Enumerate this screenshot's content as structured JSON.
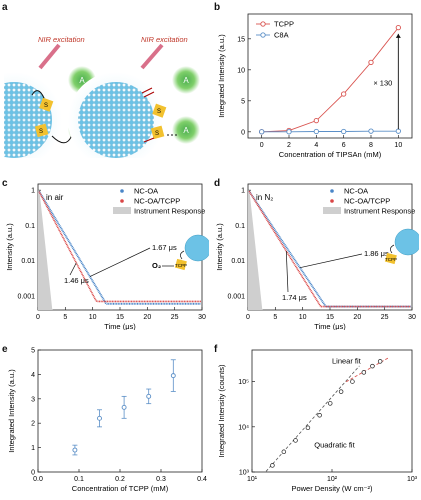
{
  "panels": {
    "a": {
      "label": "a",
      "left_caption": "NIR excitation",
      "right_caption": "NIR excitation",
      "acceptor_letter": "A",
      "sensitizer_letter": "S"
    },
    "b": {
      "label": "b"
    },
    "c": {
      "label": "c",
      "condition": "in air",
      "ann1": "1.67 μs",
      "ann2": "1.46 μs",
      "o2_label": "O₂",
      "tcpp_label": "TCPP"
    },
    "d": {
      "label": "d",
      "condition": "in N₂",
      "ann1": "1.86 μs",
      "ann2": "1.74 μs",
      "tcpp_label": "TCPP"
    },
    "e": {
      "label": "e"
    },
    "f": {
      "label": "f",
      "linear_label": "Linear fit",
      "quadratic_label": "Quadratic fit"
    }
  },
  "colors": {
    "tcpp": "#d9534f",
    "c8a": "#5b8fc7",
    "nc_oa": "#4a86c8",
    "nc_oa_tcpp": "#d94545",
    "instrument": "#cfcfcf",
    "nanocrystal": "#6cc2e6",
    "acceptor": "#4caf50",
    "sensitizer": "#f2c12e",
    "laser": "#d9708a"
  },
  "chart_data": [
    {
      "id": "b",
      "type": "line",
      "xlabel": "Concentration of TIPSAn (mM)",
      "ylabel": "Integrated Intensity (a.u.)",
      "xlim": [
        -1,
        11
      ],
      "ylim": [
        -1,
        19
      ],
      "xticks": [
        0,
        2,
        4,
        6,
        8,
        10
      ],
      "yticks": [
        0,
        5,
        10,
        15
      ],
      "annotation": "× 130",
      "series": [
        {
          "name": "TCPP",
          "x": [
            0,
            2,
            4,
            6,
            8,
            10
          ],
          "values": [
            0,
            0.2,
            1.8,
            6.1,
            11.2,
            16.8
          ]
        },
        {
          "name": "C8A",
          "x": [
            0,
            2,
            4,
            6,
            8,
            10
          ],
          "values": [
            0,
            0,
            0.05,
            0.05,
            0.1,
            0.1
          ]
        }
      ]
    },
    {
      "id": "c",
      "type": "scatter",
      "xlabel": "Time (μs)",
      "ylabel": "Intensity (a.u.)",
      "xlim": [
        0,
        30
      ],
      "ylim": [
        0.0004,
        1.5
      ],
      "yscale": "log",
      "xticks": [
        0,
        5,
        10,
        15,
        20,
        25,
        30
      ],
      "yticks": [
        1,
        0.1,
        0.01,
        0.001
      ],
      "ytick_labels": [
        "1",
        "0.1",
        "0.01",
        "0.001"
      ],
      "legend": [
        "NC-OA",
        "NC-OA/TCPP",
        "Instrument Response"
      ],
      "series": [
        {
          "name": "NC-OA",
          "tau": 1.67
        },
        {
          "name": "NC-OA/TCPP",
          "tau": 1.46
        }
      ]
    },
    {
      "id": "d",
      "type": "scatter",
      "xlabel": "Time (μs)",
      "ylabel": "Intensity (a.u.)",
      "xlim": [
        0,
        30
      ],
      "ylim": [
        0.0004,
        1.5
      ],
      "yscale": "log",
      "xticks": [
        0,
        5,
        10,
        15,
        20,
        25,
        30
      ],
      "yticks": [
        1,
        0.1,
        0.01,
        0.001
      ],
      "ytick_labels": [
        "1",
        "0.1",
        "0.01",
        "0.001"
      ],
      "legend": [
        "NC-OA",
        "NC-OA/TCPP",
        "Instrument Response"
      ],
      "series": [
        {
          "name": "NC-OA",
          "tau": 1.86
        },
        {
          "name": "NC-OA/TCPP",
          "tau": 1.74
        }
      ]
    },
    {
      "id": "e",
      "type": "scatter",
      "xlabel": "Concentration of TCPP (mM)",
      "ylabel": "Integrated Intensity (a.u.)",
      "xlim": [
        0,
        0.4
      ],
      "ylim": [
        0,
        5
      ],
      "xticks": [
        0.0,
        0.1,
        0.2,
        0.3,
        0.4
      ],
      "xtick_labels": [
        "0.0",
        "0.1",
        "0.2",
        "0.3",
        "0.4"
      ],
      "yticks": [
        0,
        1,
        2,
        3,
        4,
        5
      ],
      "series": [
        {
          "name": "",
          "x": [
            0.09,
            0.15,
            0.21,
            0.27,
            0.33
          ],
          "values": [
            0.9,
            2.2,
            2.65,
            3.1,
            3.95
          ],
          "err": [
            0.2,
            0.35,
            0.45,
            0.3,
            0.65
          ]
        }
      ]
    },
    {
      "id": "f",
      "type": "scatter",
      "xlabel": "Power Density (W cm⁻²)",
      "ylabel": "Integrated Intensity (counts)",
      "xlim": [
        10,
        1000
      ],
      "ylim": [
        1000,
        500000
      ],
      "xscale": "log",
      "yscale": "log",
      "xticks": [
        10,
        100,
        1000
      ],
      "xtick_labels": [
        "10¹",
        "10²",
        "10³"
      ],
      "yticks": [
        1000,
        10000,
        100000
      ],
      "ytick_labels": [
        "10³",
        "10⁴",
        "10⁵"
      ],
      "series": [
        {
          "name": "",
          "x": [
            18,
            25,
            35,
            50,
            70,
            95,
            130,
            180,
            250,
            320,
            400
          ],
          "values": [
            1400,
            2800,
            5000,
            9500,
            18000,
            33000,
            60000,
            100000,
            160000,
            220000,
            280000
          ]
        }
      ]
    }
  ]
}
